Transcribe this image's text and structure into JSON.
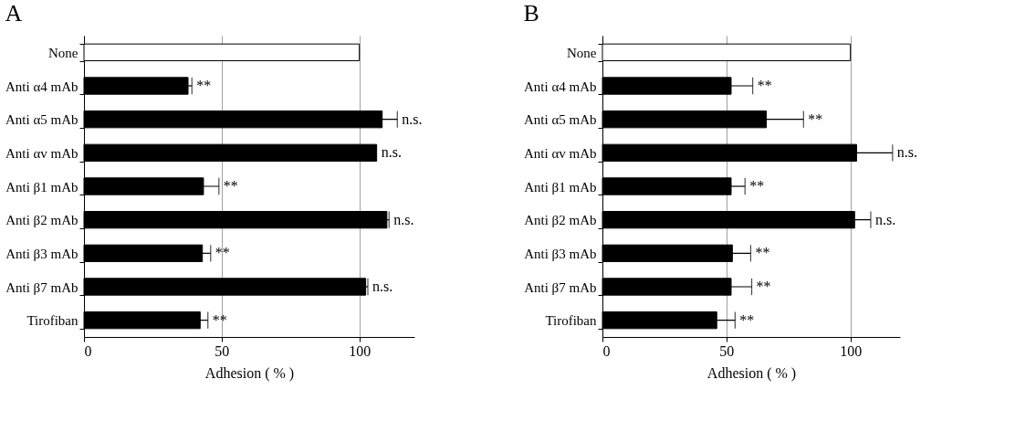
{
  "chart_data": [
    {
      "type": "bar",
      "orientation": "horizontal",
      "title": "A",
      "xlabel": "Adhesion ( % )",
      "categories": [
        "None",
        "Anti α4 mAb",
        "Anti α5 mAb",
        "Anti αv mAb",
        "Anti β1 mAb",
        "Anti β2 mAb",
        "Anti β3 mAb",
        "Anti β7 mAb",
        "Tirofiban"
      ],
      "values": [
        100,
        37.8,
        108.3,
        106.3,
        43.4,
        110,
        43,
        102.3,
        42.2
      ],
      "errors": [
        null,
        1.4,
        5.5,
        null,
        5.6,
        0.8,
        3,
        0.8,
        2.8
      ],
      "colors": [
        "#ffffff",
        "#000000",
        "#000000",
        "#000000",
        "#000000",
        "#000000",
        "#000000",
        "#000000",
        "#000000"
      ],
      "xlim": [
        0,
        120
      ],
      "xticks": [
        0,
        50,
        100
      ],
      "grid": "x",
      "annotations": [
        {
          "text": "**",
          "x": 39.2,
          "y": "Anti α4 mAb"
        },
        {
          "text": "n.s.",
          "x": 113.8,
          "y": "Anti α5 mAb"
        },
        {
          "text": "n.s.",
          "x": 106.3,
          "y": "Anti αv mAb"
        },
        {
          "text": "**",
          "x": 49,
          "y": "Anti β1 mAb"
        },
        {
          "text": "n.s.",
          "x": 110.8,
          "y": "Anti β2 mAb"
        },
        {
          "text": "**",
          "x": 46,
          "y": "Anti β3 mAb"
        },
        {
          "text": "n.s.",
          "x": 103.1,
          "y": "Anti β7 mAb"
        },
        {
          "text": "**",
          "x": 45,
          "y": "Tirofiban"
        }
      ]
    },
    {
      "type": "bar",
      "orientation": "horizontal",
      "title": "B",
      "xlabel": "Adhesion ( % )",
      "categories": [
        "None",
        "Anti α4 mAb",
        "Anti α5 mAb",
        "Anti αv mAb",
        "Anti β1 mAb",
        "Anti β2 mAb",
        "Anti β3 mAb",
        "Anti β7 mAb",
        "Tirofiban"
      ],
      "values": [
        100,
        51.9,
        66.1,
        102.5,
        51.9,
        101.7,
        52.4,
        51.9,
        46.1
      ],
      "errors": [
        null,
        8.7,
        15,
        14.5,
        5.6,
        6.5,
        7.4,
        8.3,
        7.4
      ],
      "colors": [
        "#ffffff",
        "#000000",
        "#000000",
        "#000000",
        "#000000",
        "#000000",
        "#000000",
        "#000000",
        "#000000"
      ],
      "xlim": [
        0,
        120
      ],
      "xticks": [
        0,
        50,
        100
      ],
      "grid": "x",
      "annotations": [
        {
          "text": "**",
          "x": 60.6,
          "y": "Anti α4 mAb"
        },
        {
          "text": "**",
          "x": 81.1,
          "y": "Anti α5 mAb"
        },
        {
          "text": "n.s.",
          "x": 117,
          "y": "Anti αv mAb"
        },
        {
          "text": "**",
          "x": 57.5,
          "y": "Anti β1 mAb"
        },
        {
          "text": "n.s.",
          "x": 108.2,
          "y": "Anti β2 mAb"
        },
        {
          "text": "**",
          "x": 59.8,
          "y": "Anti β3 mAb"
        },
        {
          "text": "**",
          "x": 60.2,
          "y": "Anti β7 mAb"
        },
        {
          "text": "**",
          "x": 53.5,
          "y": "Tirofiban"
        }
      ]
    }
  ]
}
